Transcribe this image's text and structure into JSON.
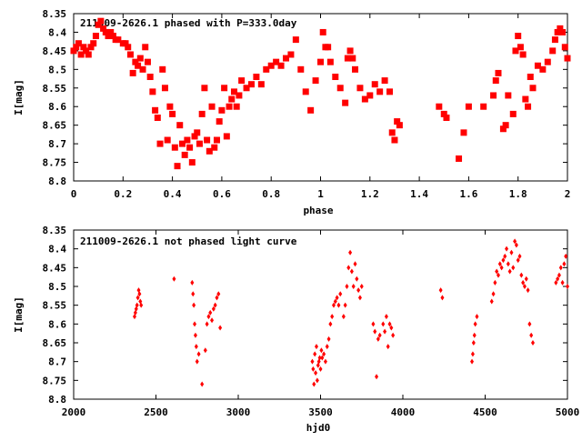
{
  "chart_data": [
    {
      "type": "scatter",
      "title": "211009-2626.1 phased with P=333.0day",
      "xlabel": "phase",
      "ylabel": "I[mag]",
      "xlim": [
        0,
        2
      ],
      "ylim": [
        8.35,
        8.8
      ],
      "y_inverted": true,
      "x_ticks": [
        "0",
        "0.2",
        "0.4",
        "0.6",
        "0.8",
        "1",
        "1.2",
        "1.4",
        "1.6",
        "1.8",
        "2"
      ],
      "y_ticks": [
        "8.35",
        "8.4",
        "8.45",
        "8.5",
        "8.55",
        "8.6",
        "8.65",
        "8.7",
        "8.75",
        "8.8"
      ],
      "grid": false,
      "marker_color": "#ff0000",
      "series": [
        {
          "points": [
            [
              0.0,
              8.45
            ],
            [
              0.01,
              8.44
            ],
            [
              0.02,
              8.43
            ],
            [
              0.03,
              8.46
            ],
            [
              0.04,
              8.44
            ],
            [
              0.05,
              8.45
            ],
            [
              0.06,
              8.46
            ],
            [
              0.07,
              8.44
            ],
            [
              0.08,
              8.43
            ],
            [
              0.09,
              8.41
            ],
            [
              0.1,
              8.38
            ],
            [
              0.11,
              8.37
            ],
            [
              0.12,
              8.39
            ],
            [
              0.13,
              8.4
            ],
            [
              0.14,
              8.41
            ],
            [
              0.15,
              8.4
            ],
            [
              0.16,
              8.41
            ],
            [
              0.17,
              8.42
            ],
            [
              0.18,
              8.42
            ],
            [
              0.2,
              8.43
            ],
            [
              0.21,
              8.43
            ],
            [
              0.22,
              8.44
            ],
            [
              0.23,
              8.46
            ],
            [
              0.24,
              8.51
            ],
            [
              0.25,
              8.48
            ],
            [
              0.26,
              8.49
            ],
            [
              0.27,
              8.47
            ],
            [
              0.28,
              8.5
            ],
            [
              0.29,
              8.44
            ],
            [
              0.3,
              8.48
            ],
            [
              0.31,
              8.52
            ],
            [
              0.32,
              8.56
            ],
            [
              0.33,
              8.61
            ],
            [
              0.34,
              8.63
            ],
            [
              0.35,
              8.7
            ],
            [
              0.36,
              8.5
            ],
            [
              0.37,
              8.55
            ],
            [
              0.38,
              8.69
            ],
            [
              0.39,
              8.6
            ],
            [
              0.4,
              8.62
            ],
            [
              0.41,
              8.71
            ],
            [
              0.42,
              8.76
            ],
            [
              0.43,
              8.65
            ],
            [
              0.44,
              8.7
            ],
            [
              0.45,
              8.73
            ],
            [
              0.46,
              8.69
            ],
            [
              0.47,
              8.71
            ],
            [
              0.48,
              8.75
            ],
            [
              0.49,
              8.68
            ],
            [
              0.5,
              8.67
            ],
            [
              0.51,
              8.7
            ],
            [
              0.52,
              8.62
            ],
            [
              0.53,
              8.55
            ],
            [
              0.54,
              8.69
            ],
            [
              0.55,
              8.72
            ],
            [
              0.56,
              8.6
            ],
            [
              0.57,
              8.71
            ],
            [
              0.58,
              8.69
            ],
            [
              0.59,
              8.64
            ],
            [
              0.6,
              8.61
            ],
            [
              0.61,
              8.55
            ],
            [
              0.62,
              8.68
            ],
            [
              0.63,
              8.6
            ],
            [
              0.64,
              8.58
            ],
            [
              0.65,
              8.56
            ],
            [
              0.66,
              8.6
            ],
            [
              0.67,
              8.57
            ],
            [
              0.68,
              8.53
            ],
            [
              0.7,
              8.55
            ],
            [
              0.72,
              8.54
            ],
            [
              0.74,
              8.52
            ],
            [
              0.76,
              8.54
            ],
            [
              0.78,
              8.5
            ],
            [
              0.8,
              8.49
            ],
            [
              0.82,
              8.48
            ],
            [
              0.84,
              8.49
            ],
            [
              0.86,
              8.47
            ],
            [
              0.88,
              8.46
            ],
            [
              0.9,
              8.42
            ],
            [
              0.92,
              8.5
            ],
            [
              0.94,
              8.56
            ],
            [
              0.96,
              8.61
            ],
            [
              0.98,
              8.53
            ],
            [
              1.0,
              8.48
            ],
            [
              1.01,
              8.4
            ],
            [
              1.02,
              8.44
            ],
            [
              1.03,
              8.44
            ],
            [
              1.04,
              8.48
            ],
            [
              1.06,
              8.52
            ],
            [
              1.08,
              8.55
            ],
            [
              1.1,
              8.59
            ],
            [
              1.11,
              8.47
            ],
            [
              1.12,
              8.45
            ],
            [
              1.13,
              8.47
            ],
            [
              1.14,
              8.5
            ],
            [
              1.16,
              8.55
            ],
            [
              1.18,
              8.58
            ],
            [
              1.2,
              8.57
            ],
            [
              1.22,
              8.54
            ],
            [
              1.24,
              8.56
            ],
            [
              1.26,
              8.53
            ],
            [
              1.28,
              8.56
            ],
            [
              1.29,
              8.67
            ],
            [
              1.3,
              8.69
            ],
            [
              1.31,
              8.64
            ],
            [
              1.32,
              8.65
            ],
            [
              1.48,
              8.6
            ],
            [
              1.5,
              8.62
            ],
            [
              1.51,
              8.63
            ],
            [
              1.56,
              8.74
            ],
            [
              1.58,
              8.67
            ],
            [
              1.6,
              8.6
            ],
            [
              1.66,
              8.6
            ],
            [
              1.7,
              8.57
            ],
            [
              1.71,
              8.53
            ],
            [
              1.72,
              8.51
            ],
            [
              1.74,
              8.66
            ],
            [
              1.75,
              8.65
            ],
            [
              1.76,
              8.57
            ],
            [
              1.78,
              8.62
            ],
            [
              1.79,
              8.45
            ],
            [
              1.8,
              8.41
            ],
            [
              1.81,
              8.44
            ],
            [
              1.82,
              8.46
            ],
            [
              1.83,
              8.58
            ],
            [
              1.84,
              8.6
            ],
            [
              1.85,
              8.52
            ],
            [
              1.86,
              8.55
            ],
            [
              1.88,
              8.49
            ],
            [
              1.9,
              8.5
            ],
            [
              1.92,
              8.48
            ],
            [
              1.94,
              8.45
            ],
            [
              1.95,
              8.42
            ],
            [
              1.96,
              8.4
            ],
            [
              1.97,
              8.39
            ],
            [
              1.98,
              8.4
            ],
            [
              1.99,
              8.44
            ],
            [
              2.0,
              8.47
            ]
          ]
        }
      ]
    },
    {
      "type": "scatter",
      "title": "211009-2626.1 not phased light curve",
      "xlabel": "hjd0",
      "ylabel": "I[mag]",
      "xlim": [
        2000,
        5000
      ],
      "ylim": [
        8.35,
        8.8
      ],
      "y_inverted": true,
      "x_ticks": [
        "2000",
        "2500",
        "3000",
        "3500",
        "4000",
        "4500",
        "5000"
      ],
      "y_ticks": [
        "8.35",
        "8.4",
        "8.45",
        "8.5",
        "8.55",
        "8.6",
        "8.65",
        "8.7",
        "8.75",
        "8.8"
      ],
      "grid": false,
      "marker_color": "#ff0000",
      "series": [
        {
          "points": [
            [
              2370,
              8.58
            ],
            [
              2375,
              8.57
            ],
            [
              2380,
              8.56
            ],
            [
              2385,
              8.55
            ],
            [
              2390,
              8.53
            ],
            [
              2395,
              8.51
            ],
            [
              2400,
              8.52
            ],
            [
              2405,
              8.54
            ],
            [
              2410,
              8.55
            ],
            [
              2610,
              8.48
            ],
            [
              2720,
              8.49
            ],
            [
              2725,
              8.52
            ],
            [
              2730,
              8.55
            ],
            [
              2735,
              8.6
            ],
            [
              2740,
              8.63
            ],
            [
              2745,
              8.66
            ],
            [
              2750,
              8.7
            ],
            [
              2760,
              8.68
            ],
            [
              2780,
              8.76
            ],
            [
              2800,
              8.67
            ],
            [
              2810,
              8.6
            ],
            [
              2820,
              8.58
            ],
            [
              2830,
              8.57
            ],
            [
              2840,
              8.59
            ],
            [
              2850,
              8.56
            ],
            [
              2860,
              8.55
            ],
            [
              2870,
              8.53
            ],
            [
              2880,
              8.52
            ],
            [
              2890,
              8.61
            ],
            [
              3450,
              8.7
            ],
            [
              3455,
              8.72
            ],
            [
              3460,
              8.76
            ],
            [
              3465,
              8.68
            ],
            [
              3470,
              8.73
            ],
            [
              3475,
              8.66
            ],
            [
              3480,
              8.75
            ],
            [
              3485,
              8.71
            ],
            [
              3490,
              8.7
            ],
            [
              3495,
              8.69
            ],
            [
              3500,
              8.72
            ],
            [
              3505,
              8.67
            ],
            [
              3510,
              8.69
            ],
            [
              3520,
              8.68
            ],
            [
              3530,
              8.7
            ],
            [
              3540,
              8.66
            ],
            [
              3550,
              8.64
            ],
            [
              3560,
              8.6
            ],
            [
              3570,
              8.58
            ],
            [
              3580,
              8.55
            ],
            [
              3590,
              8.54
            ],
            [
              3600,
              8.53
            ],
            [
              3610,
              8.55
            ],
            [
              3620,
              8.52
            ],
            [
              3640,
              8.58
            ],
            [
              3650,
              8.55
            ],
            [
              3660,
              8.5
            ],
            [
              3670,
              8.45
            ],
            [
              3680,
              8.41
            ],
            [
              3690,
              8.46
            ],
            [
              3700,
              8.5
            ],
            [
              3710,
              8.44
            ],
            [
              3720,
              8.48
            ],
            [
              3730,
              8.51
            ],
            [
              3740,
              8.53
            ],
            [
              3750,
              8.5
            ],
            [
              3820,
              8.6
            ],
            [
              3830,
              8.62
            ],
            [
              3840,
              8.74
            ],
            [
              3850,
              8.64
            ],
            [
              3860,
              8.63
            ],
            [
              3880,
              8.6
            ],
            [
              3890,
              8.62
            ],
            [
              3900,
              8.58
            ],
            [
              3910,
              8.66
            ],
            [
              3920,
              8.6
            ],
            [
              3930,
              8.61
            ],
            [
              3940,
              8.63
            ],
            [
              4230,
              8.51
            ],
            [
              4240,
              8.53
            ],
            [
              4420,
              8.7
            ],
            [
              4425,
              8.68
            ],
            [
              4430,
              8.65
            ],
            [
              4435,
              8.63
            ],
            [
              4440,
              8.6
            ],
            [
              4450,
              8.58
            ],
            [
              4540,
              8.54
            ],
            [
              4550,
              8.52
            ],
            [
              4560,
              8.49
            ],
            [
              4570,
              8.46
            ],
            [
              4580,
              8.47
            ],
            [
              4590,
              8.44
            ],
            [
              4600,
              8.45
            ],
            [
              4610,
              8.43
            ],
            [
              4620,
              8.42
            ],
            [
              4630,
              8.4
            ],
            [
              4640,
              8.44
            ],
            [
              4650,
              8.46
            ],
            [
              4660,
              8.41
            ],
            [
              4670,
              8.45
            ],
            [
              4680,
              8.38
            ],
            [
              4690,
              8.39
            ],
            [
              4700,
              8.43
            ],
            [
              4710,
              8.42
            ],
            [
              4720,
              8.47
            ],
            [
              4730,
              8.49
            ],
            [
              4740,
              8.5
            ],
            [
              4750,
              8.48
            ],
            [
              4760,
              8.51
            ],
            [
              4770,
              8.6
            ],
            [
              4780,
              8.63
            ],
            [
              4790,
              8.65
            ],
            [
              4930,
              8.49
            ],
            [
              4940,
              8.48
            ],
            [
              4950,
              8.47
            ],
            [
              4960,
              8.45
            ],
            [
              4970,
              8.49
            ],
            [
              4980,
              8.44
            ],
            [
              4990,
              8.42
            ],
            [
              5000,
              8.5
            ]
          ]
        }
      ]
    }
  ]
}
